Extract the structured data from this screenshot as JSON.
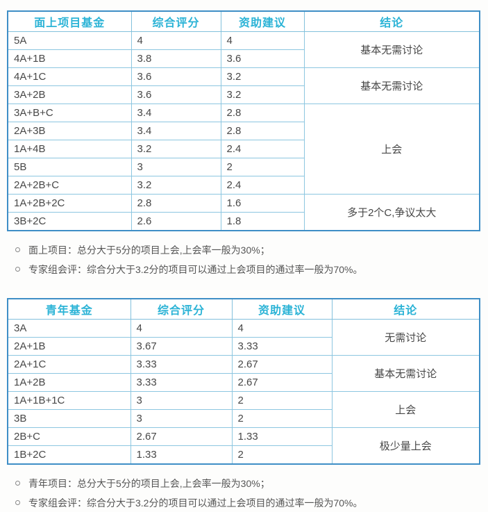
{
  "colors": {
    "header_text": "#2bb3d6",
    "outer_border": "#3e8ec6",
    "inner_border": "#8cc6e0",
    "body_text": "#474747",
    "note_text": "#555555"
  },
  "tables": [
    {
      "name": "general-fund",
      "headers": [
        "面上项目基金",
        "综合评分",
        "资助建议",
        "结论"
      ],
      "rows": [
        [
          "5A",
          "4",
          "4"
        ],
        [
          "4A+1B",
          "3.8",
          "3.6"
        ],
        [
          "4A+1C",
          "3.6",
          "3.2"
        ],
        [
          "3A+2B",
          "3.6",
          "3.2"
        ],
        [
          "3A+B+C",
          "3.4",
          "2.8"
        ],
        [
          "2A+3B",
          "3.4",
          "2.8"
        ],
        [
          "1A+4B",
          "3.2",
          "2.4"
        ],
        [
          "5B",
          "3",
          "2"
        ],
        [
          "2A+2B+C",
          "3.2",
          "2.4"
        ],
        [
          "1A+2B+2C",
          "2.8",
          "1.6"
        ],
        [
          "3B+2C",
          "2.6",
          "1.8"
        ]
      ],
      "conclusions": [
        {
          "text": "基本无需讨论",
          "span": 2
        },
        {
          "text": "基本无需讨论",
          "span": 2
        },
        {
          "text": "上会",
          "span": 5
        },
        {
          "text": "多于2个C,争议太大",
          "span": 2
        }
      ],
      "notes": [
        "面上项目：总分大于5分的项目上会,上会率一般为30%；",
        "专家组会评：综合分大于3.2分的项目可以通过上会项目的通过率一般为70%。"
      ]
    },
    {
      "name": "youth-fund",
      "headers": [
        "青年基金",
        "综合评分",
        "资助建议",
        "结论"
      ],
      "rows": [
        [
          "3A",
          "4",
          "4"
        ],
        [
          "2A+1B",
          "3.67",
          "3.33"
        ],
        [
          "2A+1C",
          "3.33",
          "2.67"
        ],
        [
          "1A+2B",
          "3.33",
          "2.67"
        ],
        [
          "1A+1B+1C",
          "3",
          "2"
        ],
        [
          "3B",
          "3",
          "2"
        ],
        [
          "2B+C",
          "2.67",
          "1.33"
        ],
        [
          "1B+2C",
          "1.33",
          "2"
        ]
      ],
      "conclusions": [
        {
          "text": "无需讨论",
          "span": 2
        },
        {
          "text": "基本无需讨论",
          "span": 2
        },
        {
          "text": "上会",
          "span": 2
        },
        {
          "text": "极少量上会",
          "span": 2
        }
      ],
      "notes": [
        "青年项目：总分大于5分的项目上会,上会率一般为30%；",
        "专家组会评：综合分大于3.2分的项目可以通过上会项目的通过率一般为70%。"
      ]
    }
  ]
}
